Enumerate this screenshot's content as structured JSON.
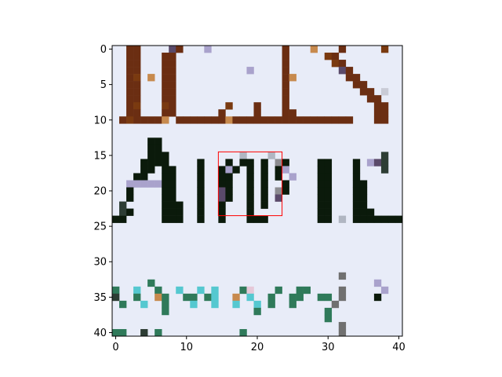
{
  "chart_data": {
    "type": "heatmap",
    "title": "",
    "xlabel": "",
    "ylabel": "",
    "grid": false,
    "xlim": [
      -0.5,
      40.5
    ],
    "ylim": [
      40.5,
      -0.5
    ],
    "y_axis_inverted": true,
    "x_ticks": [
      0,
      10,
      20,
      30,
      40
    ],
    "y_ticks": [
      0,
      5,
      10,
      15,
      20,
      25,
      30,
      35,
      40
    ],
    "background_color": "#e8ecf8",
    "palette": {
      "K": "#0b1a0b",
      "G": "#2d3d34",
      "B": "#6b2e12",
      "O": "#7a3a10",
      "P": "#a9a2cc",
      "V": "#5a4a6a",
      "T": "#2f7a5a",
      "C": "#55c8d0",
      "M": "#707070",
      "E": "#e6c8d8",
      "L": "#c9cbd6",
      "S": "#b0b6c2",
      "N": "#8c8c90",
      "R": "#c78a4e"
    },
    "pixel_rows": [
      "..BB....VB...P..........B...R...B.....O..",
      "..BB...BB...............B.....OB.........",
      "..BB...BB...............B......OB........",
      "..BB...BB..........P....B.......VB.......",
      "..BO.R.BB...............BR.......BB......",
      "..BB...BB...............B.........BB.....",
      "..BB...BB...............B..........BB.L..",
      "..BB...BB...............B...........BB...",
      "..BO...OB.......O...B...B............BB..",
      "..BB...BB......B....B...BB...........BB..",
      ".BOBBBBR.BBBBBBBRBBBBBBBBBBBBBBBBB...BB..",
      ".........................................",
      ".........................................",
      ".....KK..................................",
      ".....KK..................................",
      ".....KKK..........S...S...............G..",
      "....KKKK....K...K.KK.K.NK....KK...K.PVG..",
      "....KK.KK...K..KPK.K.K.KP....KK...K...G..",
      "...KK..KK...K..KK..K.K.K.P...KK...K......",
      "..PPPPPKK...K..KK..K.K..K....KK...KK.....",
      "..K....KK...K..VK..K.K.NK....KK...KK.....",
      "..K....KK...K..VK..K.K.V.....KK...KK.....",
      ".G.....KKK..K..K...K.K.......KK...KK.....",
      ".GK....KKK..K..K...K.........KK...KKK....",
      "KK.....KKK..K..K...KKK.......KK.S.KKKKKKK",
      ".........................................",
      ".........................................",
      ".........................................",
      ".........................................",
      ".........................................",
      ".........................................",
      ".........................................",
      "................................M........",
      ".....T...............................P...",
      "T..C..T..C..C.C...TE...T..TT....M.....P..",
      "G..T..RT..TT.TC..R.C..T..TT..TT.M....K...",
      ".T..C..T...C..C..C..C.T..T.....M.........",
      ".......T............T.........T..........",
      "..............................T..........",
      "................................M........",
      "TT..G.T...........T.............M........"
    ],
    "annotations": [
      {
        "type": "rectangle",
        "color": "#ff0000",
        "x0": 14.5,
        "y0": 14.5,
        "x1": 23.5,
        "y1": 23.5
      }
    ]
  }
}
